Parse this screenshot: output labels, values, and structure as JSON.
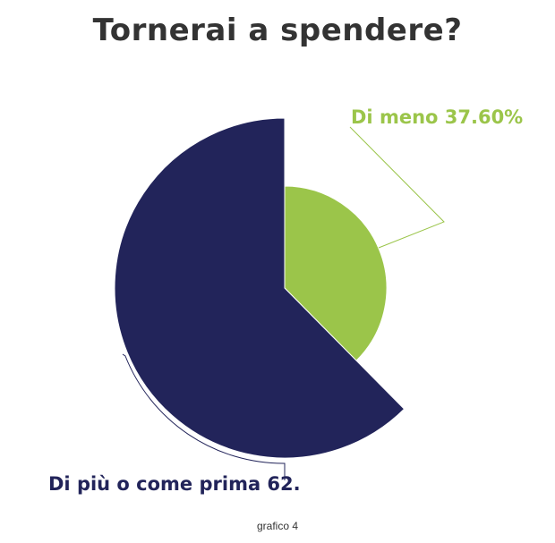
{
  "chart_data": {
    "type": "pie",
    "title": "Tornerai a spendere?",
    "slices": [
      {
        "label": "Di meno",
        "value": 37.6,
        "value_text": "37.60%",
        "color": "#9bc54a"
      },
      {
        "label": "Di più o come prima",
        "value": 62.4,
        "value_text": "62.",
        "color": "#22245a"
      }
    ],
    "legend": "none"
  },
  "caption": "grafico 4"
}
